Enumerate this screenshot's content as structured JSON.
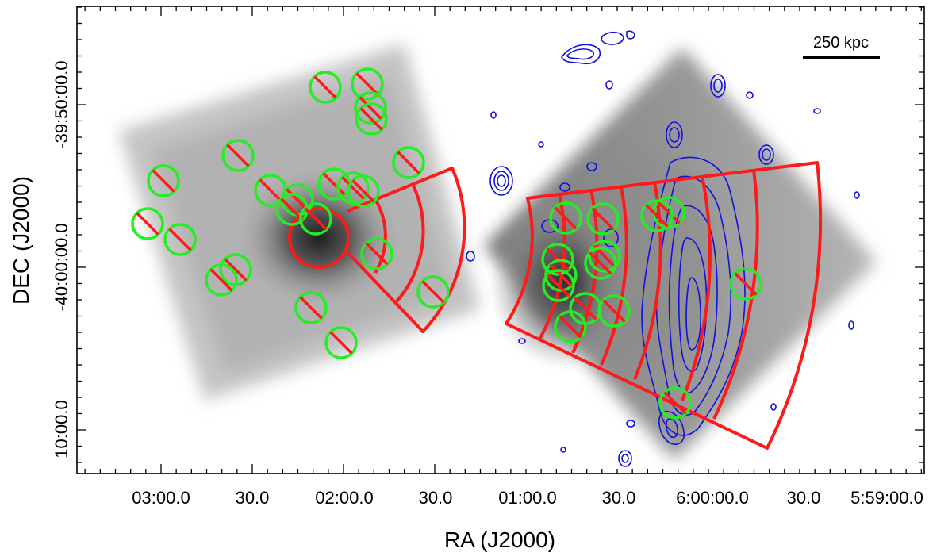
{
  "figure": {
    "x_axis_title": "RA (J2000)",
    "y_axis_title": "DEC (J2000)",
    "x_tick_labels": [
      "03:00.0",
      "30.0",
      "02:00.0",
      "30.0",
      "01:00.0",
      "30.0",
      "6:00:00.0",
      "30.0",
      "5:59:00.0"
    ],
    "y_tick_labels": [
      "-39:50:00.0",
      "-40:00:00.0",
      "10:00.0"
    ],
    "scale_bar_label": "250 kpc",
    "colors": {
      "region_sectors": "#ff1a1a",
      "excluded_sources": "#22ee22",
      "radio_contours": "#1010e0",
      "xray_image": "grayscale"
    },
    "legend_semantics": {
      "region_sectors": "red annular sectors",
      "excluded_sources": "green circles with red slash",
      "radio_contours": "blue contours"
    }
  }
}
